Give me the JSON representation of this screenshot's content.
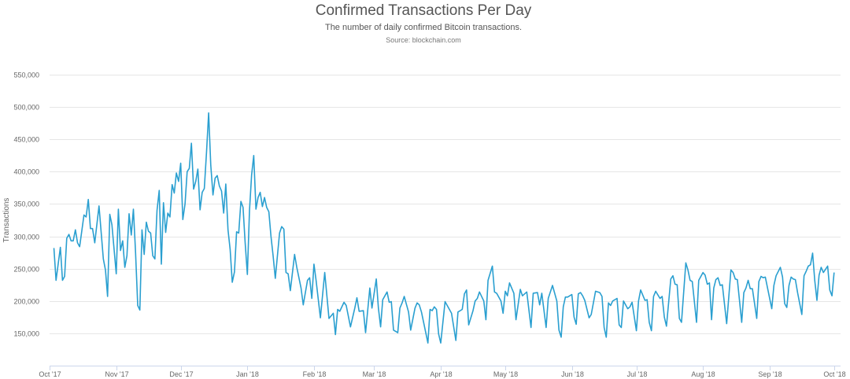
{
  "chart_data": {
    "type": "line",
    "title": "Confirmed Transactions Per Day",
    "subtitle": "The number of daily confirmed Bitcoin transactions.",
    "source": "Source: blockchain.com",
    "xlabel": "",
    "ylabel": "Transactions",
    "xlim": [
      "2017-10-01",
      "2018-10-04"
    ],
    "ylim": [
      100000,
      550000
    ],
    "grid": true,
    "legend": "none",
    "line_color": "#2a9fd0",
    "x_ticks": [
      {
        "date": "2017-10-01",
        "label": "Oct '17"
      },
      {
        "date": "2017-11-01",
        "label": "Nov '17"
      },
      {
        "date": "2017-12-01",
        "label": "Dec '17"
      },
      {
        "date": "2018-01-01",
        "label": "Jan '18"
      },
      {
        "date": "2018-02-01",
        "label": "Feb '18"
      },
      {
        "date": "2018-03-01",
        "label": "Mar '18"
      },
      {
        "date": "2018-04-01",
        "label": "Apr '18"
      },
      {
        "date": "2018-05-01",
        "label": "May '18"
      },
      {
        "date": "2018-06-01",
        "label": "Jun '18"
      },
      {
        "date": "2018-07-01",
        "label": "Jul '18"
      },
      {
        "date": "2018-08-01",
        "label": "Aug '18"
      },
      {
        "date": "2018-09-01",
        "label": "Sep '18"
      },
      {
        "date": "2018-10-01",
        "label": "Oct '18"
      }
    ],
    "y_ticks": [
      {
        "value": 150000,
        "label": "150,000"
      },
      {
        "value": 200000,
        "label": "200,000"
      },
      {
        "value": 250000,
        "label": "250,000"
      },
      {
        "value": 300000,
        "label": "300,000"
      },
      {
        "value": 350000,
        "label": "350,000"
      },
      {
        "value": 400000,
        "label": "400,000"
      },
      {
        "value": 450000,
        "label": "450,000"
      },
      {
        "value": 500000,
        "label": "500,000"
      },
      {
        "value": 550000,
        "label": "550,000"
      }
    ],
    "points": [
      [
        "2017-10-03",
        282000
      ],
      [
        "2017-10-04",
        232000
      ],
      [
        "2017-10-06",
        283000
      ],
      [
        "2017-10-07",
        232000
      ],
      [
        "2017-10-08",
        238000
      ],
      [
        "2017-10-09",
        297000
      ],
      [
        "2017-10-10",
        303000
      ],
      [
        "2017-10-11",
        293000
      ],
      [
        "2017-10-12",
        293000
      ],
      [
        "2017-10-13",
        310000
      ],
      [
        "2017-10-14",
        290000
      ],
      [
        "2017-10-15",
        284000
      ],
      [
        "2017-10-17",
        333000
      ],
      [
        "2017-10-18",
        330000
      ],
      [
        "2017-10-19",
        357000
      ],
      [
        "2017-10-20",
        312000
      ],
      [
        "2017-10-21",
        312000
      ],
      [
        "2017-10-22",
        290000
      ],
      [
        "2017-10-24",
        347000
      ],
      [
        "2017-10-26",
        265000
      ],
      [
        "2017-10-27",
        248000
      ],
      [
        "2017-10-28",
        207000
      ],
      [
        "2017-10-29",
        334000
      ],
      [
        "2017-10-30",
        318000
      ],
      [
        "2017-11-01",
        242000
      ],
      [
        "2017-11-02",
        342000
      ],
      [
        "2017-11-03",
        278000
      ],
      [
        "2017-11-04",
        293000
      ],
      [
        "2017-11-05",
        252000
      ],
      [
        "2017-11-06",
        270000
      ],
      [
        "2017-11-07",
        335000
      ],
      [
        "2017-11-08",
        302000
      ],
      [
        "2017-11-09",
        342000
      ],
      [
        "2017-11-10",
        276000
      ],
      [
        "2017-11-11",
        193000
      ],
      [
        "2017-11-12",
        186000
      ],
      [
        "2017-11-13",
        310000
      ],
      [
        "2017-11-14",
        272000
      ],
      [
        "2017-11-15",
        322000
      ],
      [
        "2017-11-16",
        308000
      ],
      [
        "2017-11-17",
        305000
      ],
      [
        "2017-11-18",
        270000
      ],
      [
        "2017-11-19",
        265000
      ],
      [
        "2017-11-20",
        340000
      ],
      [
        "2017-11-21",
        371000
      ],
      [
        "2017-11-22",
        257000
      ],
      [
        "2017-11-23",
        352000
      ],
      [
        "2017-11-24",
        306000
      ],
      [
        "2017-11-25",
        336000
      ],
      [
        "2017-11-26",
        330000
      ],
      [
        "2017-11-27",
        380000
      ],
      [
        "2017-11-28",
        367000
      ],
      [
        "2017-11-29",
        398000
      ],
      [
        "2017-11-30",
        385000
      ],
      [
        "2017-12-01",
        413000
      ],
      [
        "2017-12-02",
        326000
      ],
      [
        "2017-12-03",
        350000
      ],
      [
        "2017-12-04",
        400000
      ],
      [
        "2017-12-05",
        405000
      ],
      [
        "2017-12-06",
        444000
      ],
      [
        "2017-12-07",
        373000
      ],
      [
        "2017-12-08",
        385000
      ],
      [
        "2017-12-09",
        404000
      ],
      [
        "2017-12-10",
        341000
      ],
      [
        "2017-12-11",
        368000
      ],
      [
        "2017-12-12",
        374000
      ],
      [
        "2017-12-13",
        430000
      ],
      [
        "2017-12-14",
        491000
      ],
      [
        "2017-12-15",
        410000
      ],
      [
        "2017-12-16",
        364000
      ],
      [
        "2017-12-17",
        390000
      ],
      [
        "2017-12-18",
        394000
      ],
      [
        "2017-12-19",
        378000
      ],
      [
        "2017-12-20",
        370000
      ],
      [
        "2017-12-21",
        336000
      ],
      [
        "2017-12-22",
        381000
      ],
      [
        "2017-12-23",
        310000
      ],
      [
        "2017-12-24",
        280000
      ],
      [
        "2017-12-25",
        229000
      ],
      [
        "2017-12-26",
        245000
      ],
      [
        "2017-12-27",
        307000
      ],
      [
        "2017-12-28",
        305000
      ],
      [
        "2017-12-29",
        354000
      ],
      [
        "2017-12-30",
        345000
      ],
      [
        "2017-12-31",
        290000
      ],
      [
        "2018-01-01",
        241000
      ],
      [
        "2018-01-02",
        340000
      ],
      [
        "2018-01-03",
        395000
      ],
      [
        "2018-01-04",
        425000
      ],
      [
        "2018-01-05",
        342000
      ],
      [
        "2018-01-06",
        360000
      ],
      [
        "2018-01-07",
        368000
      ],
      [
        "2018-01-08",
        346000
      ],
      [
        "2018-01-09",
        360000
      ],
      [
        "2018-01-10",
        345000
      ],
      [
        "2018-01-11",
        338000
      ],
      [
        "2018-01-12",
        300000
      ],
      [
        "2018-01-13",
        270000
      ],
      [
        "2018-01-14",
        235000
      ],
      [
        "2018-01-15",
        270000
      ],
      [
        "2018-01-16",
        305000
      ],
      [
        "2018-01-17",
        315000
      ],
      [
        "2018-01-18",
        311000
      ],
      [
        "2018-01-19",
        244000
      ],
      [
        "2018-01-20",
        242000
      ],
      [
        "2018-01-21",
        216000
      ],
      [
        "2018-01-23",
        272000
      ],
      [
        "2018-01-24",
        252000
      ],
      [
        "2018-01-26",
        220000
      ],
      [
        "2018-01-27",
        194000
      ],
      [
        "2018-01-29",
        232000
      ],
      [
        "2018-01-30",
        236000
      ],
      [
        "2018-01-31",
        204000
      ],
      [
        "2018-02-01",
        257000
      ],
      [
        "2018-02-02",
        232000
      ],
      [
        "2018-02-04",
        174000
      ],
      [
        "2018-02-06",
        244000
      ],
      [
        "2018-02-08",
        173000
      ],
      [
        "2018-02-10",
        181000
      ],
      [
        "2018-02-11",
        148000
      ],
      [
        "2018-02-12",
        187000
      ],
      [
        "2018-02-13",
        184000
      ],
      [
        "2018-02-15",
        198000
      ],
      [
        "2018-02-16",
        193000
      ],
      [
        "2018-02-18",
        160000
      ],
      [
        "2018-02-20",
        189000
      ],
      [
        "2018-02-21",
        205000
      ],
      [
        "2018-02-22",
        184000
      ],
      [
        "2018-02-24",
        185000
      ],
      [
        "2018-02-25",
        151000
      ],
      [
        "2018-02-27",
        220000
      ],
      [
        "2018-02-28",
        189000
      ],
      [
        "2018-03-02",
        234000
      ],
      [
        "2018-03-03",
        189000
      ],
      [
        "2018-03-04",
        160000
      ],
      [
        "2018-03-05",
        202000
      ],
      [
        "2018-03-07",
        214000
      ],
      [
        "2018-03-08",
        198000
      ],
      [
        "2018-03-09",
        199000
      ],
      [
        "2018-03-10",
        155000
      ],
      [
        "2018-03-12",
        151000
      ],
      [
        "2018-03-13",
        189000
      ],
      [
        "2018-03-14",
        197000
      ],
      [
        "2018-03-15",
        207000
      ],
      [
        "2018-03-17",
        183000
      ],
      [
        "2018-03-18",
        155000
      ],
      [
        "2018-03-20",
        189000
      ],
      [
        "2018-03-21",
        197000
      ],
      [
        "2018-03-22",
        194000
      ],
      [
        "2018-03-23",
        183000
      ],
      [
        "2018-03-26",
        135000
      ],
      [
        "2018-03-27",
        187000
      ],
      [
        "2018-03-28",
        185000
      ],
      [
        "2018-03-29",
        191000
      ],
      [
        "2018-03-30",
        187000
      ],
      [
        "2018-03-31",
        149000
      ],
      [
        "2018-04-01",
        135000
      ],
      [
        "2018-04-03",
        199000
      ],
      [
        "2018-04-05",
        187000
      ],
      [
        "2018-04-06",
        181000
      ],
      [
        "2018-04-08",
        139000
      ],
      [
        "2018-04-09",
        183000
      ],
      [
        "2018-04-11",
        187000
      ],
      [
        "2018-04-12",
        211000
      ],
      [
        "2018-04-13",
        217000
      ],
      [
        "2018-04-14",
        163000
      ],
      [
        "2018-04-16",
        185000
      ],
      [
        "2018-04-17",
        200000
      ],
      [
        "2018-04-18",
        204000
      ],
      [
        "2018-04-19",
        214000
      ],
      [
        "2018-04-21",
        200000
      ],
      [
        "2018-04-22",
        171000
      ],
      [
        "2018-04-23",
        232000
      ],
      [
        "2018-04-25",
        254000
      ],
      [
        "2018-04-26",
        214000
      ],
      [
        "2018-04-27",
        212000
      ],
      [
        "2018-04-29",
        200000
      ],
      [
        "2018-04-30",
        181000
      ],
      [
        "2018-05-01",
        215000
      ],
      [
        "2018-05-02",
        208000
      ],
      [
        "2018-05-03",
        228000
      ],
      [
        "2018-05-05",
        212000
      ],
      [
        "2018-05-06",
        171000
      ],
      [
        "2018-05-08",
        218000
      ],
      [
        "2018-05-09",
        208000
      ],
      [
        "2018-05-11",
        214000
      ],
      [
        "2018-05-13",
        159000
      ],
      [
        "2018-05-14",
        212000
      ],
      [
        "2018-05-16",
        213000
      ],
      [
        "2018-05-17",
        194000
      ],
      [
        "2018-05-18",
        212000
      ],
      [
        "2018-05-20",
        159000
      ],
      [
        "2018-05-21",
        204000
      ],
      [
        "2018-05-23",
        224000
      ],
      [
        "2018-05-25",
        200000
      ],
      [
        "2018-05-26",
        155000
      ],
      [
        "2018-05-27",
        144000
      ],
      [
        "2018-05-28",
        191000
      ],
      [
        "2018-05-29",
        206000
      ],
      [
        "2018-05-30",
        206000
      ],
      [
        "2018-06-01",
        210000
      ],
      [
        "2018-06-02",
        175000
      ],
      [
        "2018-06-03",
        164000
      ],
      [
        "2018-06-04",
        211000
      ],
      [
        "2018-06-05",
        213000
      ],
      [
        "2018-06-06",
        208000
      ],
      [
        "2018-06-07",
        201000
      ],
      [
        "2018-06-09",
        174000
      ],
      [
        "2018-06-10",
        179000
      ],
      [
        "2018-06-12",
        215000
      ],
      [
        "2018-06-14",
        213000
      ],
      [
        "2018-06-15",
        207000
      ],
      [
        "2018-06-16",
        159000
      ],
      [
        "2018-06-17",
        144000
      ],
      [
        "2018-06-18",
        197000
      ],
      [
        "2018-06-19",
        193000
      ],
      [
        "2018-06-20",
        200000
      ],
      [
        "2018-06-22",
        204000
      ],
      [
        "2018-06-23",
        163000
      ],
      [
        "2018-06-24",
        159000
      ],
      [
        "2018-06-25",
        200000
      ],
      [
        "2018-06-27",
        188000
      ],
      [
        "2018-06-28",
        191000
      ],
      [
        "2018-06-29",
        198000
      ],
      [
        "2018-07-01",
        154000
      ],
      [
        "2018-07-02",
        200000
      ],
      [
        "2018-07-03",
        217000
      ],
      [
        "2018-07-05",
        201000
      ],
      [
        "2018-07-06",
        202000
      ],
      [
        "2018-07-07",
        167000
      ],
      [
        "2018-07-08",
        154000
      ],
      [
        "2018-07-09",
        207000
      ],
      [
        "2018-07-10",
        215000
      ],
      [
        "2018-07-12",
        204000
      ],
      [
        "2018-07-13",
        207000
      ],
      [
        "2018-07-14",
        175000
      ],
      [
        "2018-07-15",
        161000
      ],
      [
        "2018-07-17",
        234000
      ],
      [
        "2018-07-18",
        239000
      ],
      [
        "2018-07-19",
        226000
      ],
      [
        "2018-07-20",
        225000
      ],
      [
        "2018-07-21",
        173000
      ],
      [
        "2018-07-22",
        167000
      ],
      [
        "2018-07-24",
        259000
      ],
      [
        "2018-07-25",
        248000
      ],
      [
        "2018-07-26",
        232000
      ],
      [
        "2018-07-27",
        230000
      ],
      [
        "2018-07-29",
        167000
      ],
      [
        "2018-07-30",
        232000
      ],
      [
        "2018-08-01",
        244000
      ],
      [
        "2018-08-02",
        240000
      ],
      [
        "2018-08-03",
        226000
      ],
      [
        "2018-08-04",
        228000
      ],
      [
        "2018-08-05",
        171000
      ],
      [
        "2018-08-06",
        220000
      ],
      [
        "2018-08-07",
        233000
      ],
      [
        "2018-08-08",
        236000
      ],
      [
        "2018-08-09",
        224000
      ],
      [
        "2018-08-10",
        225000
      ],
      [
        "2018-08-12",
        165000
      ],
      [
        "2018-08-14",
        248000
      ],
      [
        "2018-08-15",
        244000
      ],
      [
        "2018-08-16",
        234000
      ],
      [
        "2018-08-17",
        233000
      ],
      [
        "2018-08-19",
        167000
      ],
      [
        "2018-08-20",
        213000
      ],
      [
        "2018-08-21",
        220000
      ],
      [
        "2018-08-22",
        232000
      ],
      [
        "2018-08-23",
        219000
      ],
      [
        "2018-08-24",
        219000
      ],
      [
        "2018-08-26",
        173000
      ],
      [
        "2018-08-27",
        230000
      ],
      [
        "2018-08-28",
        238000
      ],
      [
        "2018-08-29",
        236000
      ],
      [
        "2018-08-30",
        237000
      ],
      [
        "2018-09-02",
        188000
      ],
      [
        "2018-09-03",
        224000
      ],
      [
        "2018-09-04",
        239000
      ],
      [
        "2018-09-06",
        252000
      ],
      [
        "2018-09-07",
        237000
      ],
      [
        "2018-09-08",
        196000
      ],
      [
        "2018-09-09",
        190000
      ],
      [
        "2018-09-10",
        224000
      ],
      [
        "2018-09-11",
        237000
      ],
      [
        "2018-09-12",
        234000
      ],
      [
        "2018-09-13",
        233000
      ],
      [
        "2018-09-14",
        213000
      ],
      [
        "2018-09-16",
        179000
      ],
      [
        "2018-09-17",
        239000
      ],
      [
        "2018-09-18",
        246000
      ],
      [
        "2018-09-19",
        254000
      ],
      [
        "2018-09-20",
        256000
      ],
      [
        "2018-09-21",
        274000
      ],
      [
        "2018-09-22",
        232000
      ],
      [
        "2018-09-23",
        201000
      ],
      [
        "2018-09-24",
        240000
      ],
      [
        "2018-09-25",
        252000
      ],
      [
        "2018-09-26",
        244000
      ],
      [
        "2018-09-28",
        254000
      ],
      [
        "2018-09-29",
        217000
      ],
      [
        "2018-09-30",
        208000
      ],
      [
        "2018-10-01",
        244000
      ]
    ]
  }
}
